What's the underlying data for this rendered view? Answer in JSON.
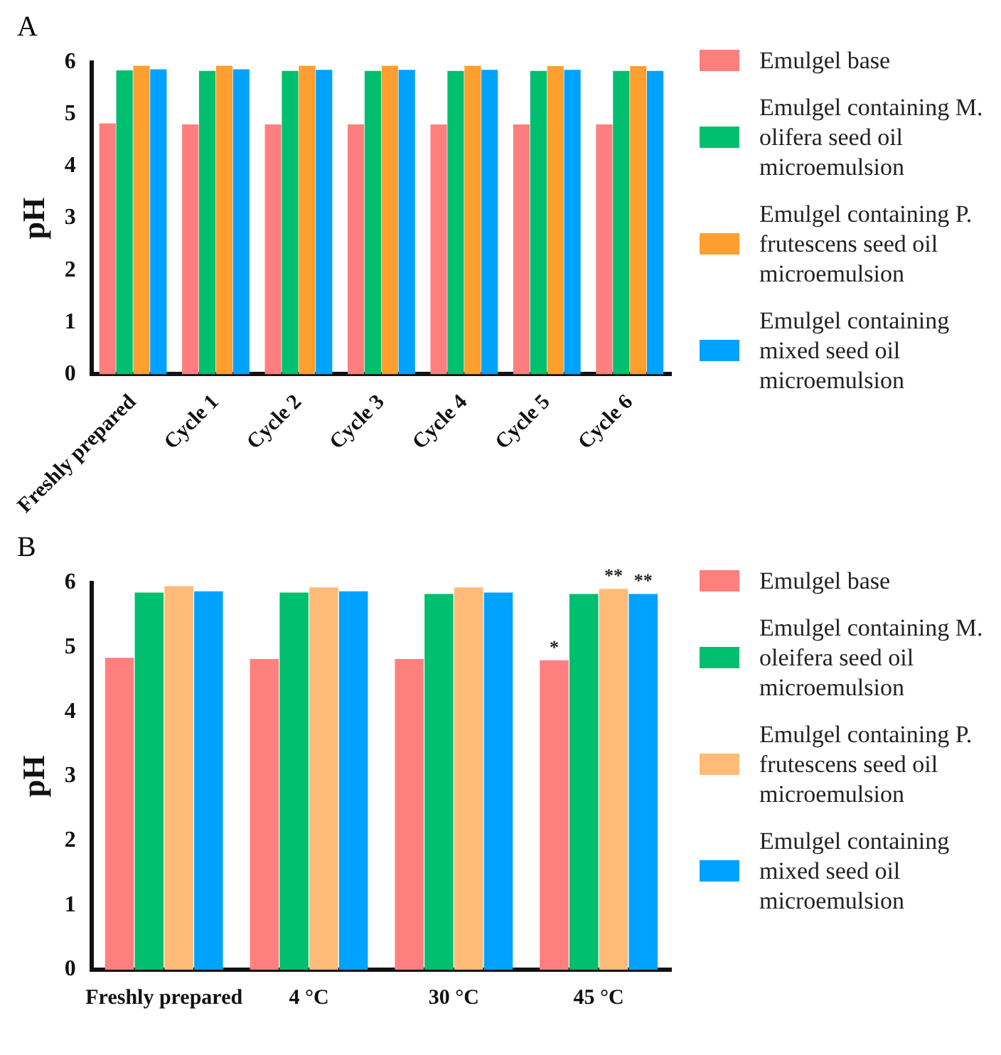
{
  "chart_data": [
    {
      "type": "bar",
      "title": "A",
      "ylabel": "pH",
      "categories": [
        "Freshly prepared",
        "Cycle 1",
        "Cycle 2",
        "Cycle 3",
        "Cycle 4",
        "Cycle 5",
        "Cycle 6"
      ],
      "ylim": [
        0,
        6
      ],
      "yticks": [
        0,
        1,
        2,
        3,
        4,
        5,
        6
      ],
      "grid": false,
      "legend": "right",
      "series": [
        {
          "name": "Emulgel base",
          "color": "#ff7f7f",
          "values": [
            4.83,
            4.81,
            4.81,
            4.81,
            4.81,
            4.81,
            4.81
          ]
        },
        {
          "name": "Emulgel containing M. olifera seed oil microemulsion",
          "color": "#00bf6f",
          "values": [
            5.85,
            5.84,
            5.84,
            5.84,
            5.84,
            5.84,
            5.84
          ]
        },
        {
          "name": "Emulgel containing P. frutescens seed oil microemulsion",
          "color": "#ff9f2f",
          "values": [
            5.94,
            5.94,
            5.94,
            5.94,
            5.94,
            5.93,
            5.93
          ]
        },
        {
          "name": "Emulgel containing mixed seed oil microemulsion",
          "color": "#00a2ff",
          "values": [
            5.87,
            5.87,
            5.86,
            5.86,
            5.86,
            5.86,
            5.84
          ]
        }
      ]
    },
    {
      "type": "bar",
      "title": "B",
      "ylabel": "pH",
      "categories": [
        "Freshly prepared",
        "4 °C",
        "30 °C",
        "45 °C"
      ],
      "ylim": [
        0,
        6
      ],
      "yticks": [
        0,
        1,
        2,
        3,
        4,
        5,
        6
      ],
      "grid": false,
      "legend": "right",
      "series": [
        {
          "name": "Emulgel base",
          "color": "#ff7f7f",
          "values": [
            4.84,
            4.82,
            4.82,
            4.8
          ]
        },
        {
          "name": "Emulgel containing M. oleifera seed oil microemulsion",
          "color": "#00bf6f",
          "values": [
            5.85,
            5.85,
            5.83,
            5.83
          ]
        },
        {
          "name": "Emulgel containing P. frutescens seed oil microemulsion",
          "color": "#ffbb77",
          "values": [
            5.95,
            5.93,
            5.93,
            5.91
          ]
        },
        {
          "name": "Emulgel containing mixed seed oil microemulsion",
          "color": "#00a2ff",
          "values": [
            5.87,
            5.87,
            5.85,
            5.83
          ]
        }
      ],
      "annotations": [
        {
          "text": "*",
          "x": "45 °C",
          "y": 4.8
        },
        {
          "text": "**",
          "x": "45 °C",
          "y": 5.91
        },
        {
          "text": "**",
          "x": "45 °C",
          "y": 5.83
        }
      ]
    }
  ]
}
